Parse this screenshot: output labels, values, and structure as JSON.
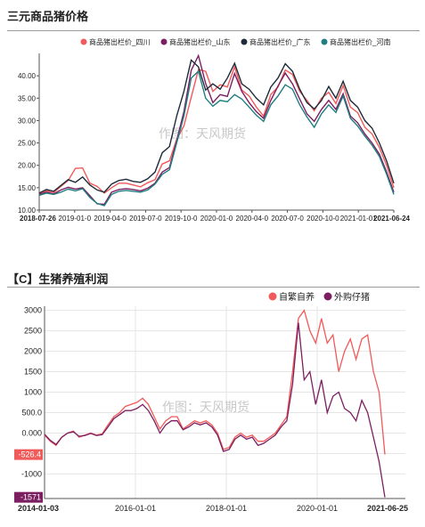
{
  "top": {
    "title": "三元商品猪价格",
    "watermark": "作图：天风期货",
    "chart_data": {
      "type": "line",
      "ylim": [
        10,
        45
      ],
      "yticks": [
        "10.00",
        "15.00",
        "20.00",
        "25.00",
        "30.00",
        "35.00",
        "40.00"
      ],
      "xlabels": [
        "2018-07-26",
        "2019-01-0",
        "2019-04-0",
        "2019-07-0",
        "2019-10-0",
        "2020-01-0",
        "2020-04-0",
        "2020-07-0",
        "2020-10-0",
        "2021-01-01",
        "2021-06-24"
      ],
      "bold_xlabels": [
        0,
        10
      ],
      "legend": "top-right",
      "grid": false,
      "series": [
        {
          "name": "商品猪出栏价_四川",
          "color": "#f15a5a",
          "values": [
            13.5,
            14.3,
            13.9,
            15.3,
            16.6,
            19.3,
            19.4,
            16.0,
            15.3,
            13.8,
            15.0,
            16.0,
            16.0,
            15.6,
            15.2,
            16.1,
            16.8,
            20.3,
            21.0,
            25.8,
            28.8,
            35.2,
            41.4,
            41.0,
            36.5,
            38.0,
            37.5,
            42.0,
            36.8,
            35.5,
            33.0,
            31.0,
            35.8,
            37.5,
            41.3,
            40.3,
            36.5,
            34.5,
            32.2,
            35.0,
            36.3,
            33.8,
            37.8,
            33.0,
            31.8,
            28.5,
            27.0,
            24.0,
            20.0,
            15.0
          ]
        },
        {
          "name": "商品猪出栏价_山东",
          "color": "#7b1f61",
          "values": [
            13.5,
            14.0,
            13.6,
            14.5,
            15.1,
            14.7,
            15.0,
            13.2,
            11.4,
            11.3,
            14.0,
            14.6,
            14.8,
            14.6,
            14.3,
            14.9,
            16.0,
            18.5,
            19.5,
            25.5,
            32.0,
            41.2,
            44.5,
            38.3,
            34.0,
            35.8,
            35.4,
            40.5,
            36.5,
            34.0,
            32.0,
            30.5,
            34.5,
            37.7,
            40.6,
            38.2,
            34.8,
            31.5,
            29.8,
            32.5,
            34.5,
            32.5,
            36.0,
            31.0,
            29.5,
            27.0,
            25.0,
            22.5,
            18.5,
            14.0
          ]
        },
        {
          "name": "商品猪出栏价_广东",
          "color": "#1f2b3a",
          "values": [
            13.8,
            14.6,
            14.2,
            15.5,
            16.8,
            16.2,
            17.4,
            15.6,
            14.5,
            14.0,
            15.8,
            16.6,
            16.9,
            16.4,
            16.2,
            17.0,
            18.5,
            22.8,
            24.2,
            31.0,
            36.5,
            43.5,
            42.0,
            36.8,
            38.2,
            37.0,
            39.5,
            42.8,
            38.2,
            37.0,
            35.0,
            33.5,
            37.5,
            39.5,
            42.7,
            41.0,
            37.0,
            34.0,
            32.6,
            34.5,
            37.6,
            35.0,
            38.8,
            34.5,
            33.0,
            30.0,
            28.3,
            25.0,
            21.0,
            16.0
          ]
        },
        {
          "name": "商品猪出栏价_河南",
          "color": "#1f7f80",
          "values": [
            13.3,
            13.8,
            13.5,
            14.0,
            14.7,
            14.3,
            14.8,
            12.8,
            11.5,
            11.0,
            13.5,
            14.2,
            14.4,
            14.2,
            14.0,
            14.5,
            15.8,
            18.0,
            19.0,
            25.0,
            31.0,
            39.5,
            41.0,
            35.0,
            33.2,
            34.5,
            34.2,
            35.8,
            34.8,
            33.0,
            31.2,
            29.8,
            33.5,
            35.5,
            38.0,
            37.0,
            33.5,
            30.8,
            28.5,
            31.5,
            33.5,
            31.8,
            35.5,
            30.5,
            28.8,
            26.5,
            24.5,
            22.0,
            18.0,
            13.5
          ]
        }
      ]
    }
  },
  "bottom": {
    "title": "【C】生猪养殖利润",
    "watermark": "作图：天风期货",
    "chart_data": {
      "type": "line",
      "ylim": [
        -1600,
        3100
      ],
      "yticks": [
        "3000",
        "2500",
        "2000",
        "1500",
        "1000",
        "500.0",
        "0.000",
        "-500.0",
        "-1000"
      ],
      "xlabels": [
        "2014-01-03",
        "2016-01-01",
        "2018-01-01",
        "2020-01-01",
        "2021-06-25"
      ],
      "bold_xlabels": [
        0,
        4
      ],
      "end_labels": [
        "-526.4",
        "-1571"
      ],
      "legend": "top-right",
      "grid": true,
      "series": [
        {
          "name": "自繁自养",
          "color": "#f15a5a",
          "values": [
            -50,
            -200,
            -300,
            -100,
            0,
            50,
            -100,
            -50,
            0,
            -50,
            -20,
            200,
            400,
            500,
            650,
            700,
            750,
            850,
            700,
            400,
            100,
            300,
            400,
            400,
            100,
            200,
            300,
            250,
            300,
            200,
            0,
            -400,
            -350,
            -100,
            0,
            -100,
            -50,
            -200,
            -200,
            -100,
            0,
            200,
            400,
            1500,
            2800,
            3000,
            2500,
            2200,
            2800,
            2200,
            2400,
            1500,
            2000,
            2300,
            1800,
            2300,
            2400,
            1500,
            1000,
            -526
          ]
        },
        {
          "name": "外购仔猪",
          "color": "#7b1f61",
          "values": [
            -30,
            -180,
            -280,
            -100,
            0,
            30,
            -80,
            -60,
            -10,
            -60,
            -40,
            150,
            350,
            450,
            550,
            550,
            600,
            700,
            550,
            300,
            0,
            200,
            300,
            300,
            80,
            150,
            250,
            200,
            250,
            150,
            -50,
            -450,
            -400,
            -150,
            -50,
            -150,
            -100,
            -300,
            -250,
            -150,
            -50,
            150,
            300,
            1200,
            2700,
            1300,
            1500,
            700,
            1300,
            500,
            900,
            1000,
            600,
            500,
            300,
            800,
            500,
            -100,
            -700,
            -1571
          ]
        }
      ]
    }
  }
}
